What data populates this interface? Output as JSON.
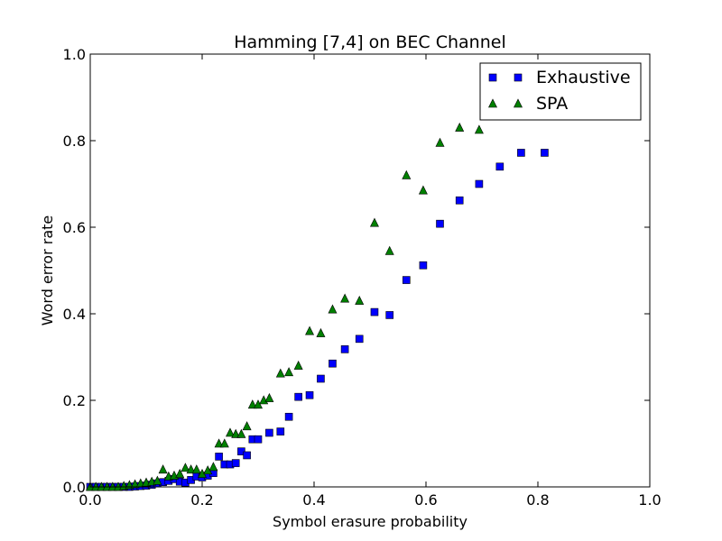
{
  "chart_data": {
    "type": "scatter",
    "title": "Hamming [7,4] on BEC Channel",
    "xlabel": "Symbol erasure probability",
    "ylabel": "Word error rate",
    "xlim": [
      0.0,
      1.0
    ],
    "ylim": [
      0.0,
      1.0
    ],
    "xticks": [
      "0.0",
      "0.2",
      "0.4",
      "0.6",
      "0.8",
      "1.0"
    ],
    "yticks": [
      "0.0",
      "0.2",
      "0.4",
      "0.6",
      "0.8",
      "1.0"
    ],
    "grid": false,
    "legend_position": "top-right",
    "series": [
      {
        "name": "Exhaustive",
        "marker": "square",
        "color": "#0000ff",
        "x": [
          0.0,
          0.01,
          0.02,
          0.03,
          0.04,
          0.05,
          0.06,
          0.07,
          0.08,
          0.09,
          0.1,
          0.11,
          0.12,
          0.13,
          0.14,
          0.15,
          0.16,
          0.17,
          0.18,
          0.19,
          0.2,
          0.21,
          0.22,
          0.23,
          0.24,
          0.25,
          0.26,
          0.27,
          0.28,
          0.29,
          0.3,
          0.32,
          0.34,
          0.355,
          0.372,
          0.392,
          0.412,
          0.433,
          0.455,
          0.481,
          0.508,
          0.535,
          0.565,
          0.595,
          0.625,
          0.66,
          0.695,
          0.732,
          0.77,
          0.812
        ],
        "y": [
          0.0,
          0.0,
          0.0,
          0.0,
          0.0,
          0.0,
          0.0,
          0.0,
          0.001,
          0.002,
          0.003,
          0.005,
          0.008,
          0.011,
          0.014,
          0.018,
          0.012,
          0.01,
          0.016,
          0.024,
          0.022,
          0.026,
          0.032,
          0.07,
          0.052,
          0.052,
          0.055,
          0.082,
          0.073,
          0.11,
          0.11,
          0.125,
          0.128,
          0.162,
          0.208,
          0.212,
          0.25,
          0.285,
          0.318,
          0.342,
          0.404,
          0.397,
          0.478,
          0.512,
          0.608,
          0.662,
          0.7,
          0.74,
          0.772,
          0.772
        ]
      },
      {
        "name": "SPA",
        "marker": "triangle",
        "color": "#008000",
        "x": [
          0.0,
          0.01,
          0.02,
          0.03,
          0.04,
          0.05,
          0.06,
          0.07,
          0.08,
          0.09,
          0.1,
          0.11,
          0.12,
          0.13,
          0.14,
          0.15,
          0.16,
          0.17,
          0.18,
          0.19,
          0.2,
          0.21,
          0.22,
          0.23,
          0.24,
          0.25,
          0.26,
          0.27,
          0.28,
          0.29,
          0.3,
          0.31,
          0.32,
          0.34,
          0.355,
          0.372,
          0.392,
          0.412,
          0.433,
          0.455,
          0.481,
          0.508,
          0.535,
          0.565,
          0.595,
          0.625,
          0.66,
          0.695
        ],
        "y": [
          0.0,
          0.0,
          0.0,
          0.0,
          0.0,
          0.0,
          0.002,
          0.004,
          0.006,
          0.008,
          0.01,
          0.012,
          0.014,
          0.04,
          0.024,
          0.026,
          0.03,
          0.044,
          0.04,
          0.04,
          0.03,
          0.038,
          0.046,
          0.1,
          0.1,
          0.125,
          0.122,
          0.122,
          0.14,
          0.19,
          0.19,
          0.2,
          0.205,
          0.262,
          0.265,
          0.28,
          0.36,
          0.355,
          0.41,
          0.435,
          0.43,
          0.61,
          0.545,
          0.72,
          0.685,
          0.795,
          0.83,
          0.825
        ]
      }
    ]
  }
}
